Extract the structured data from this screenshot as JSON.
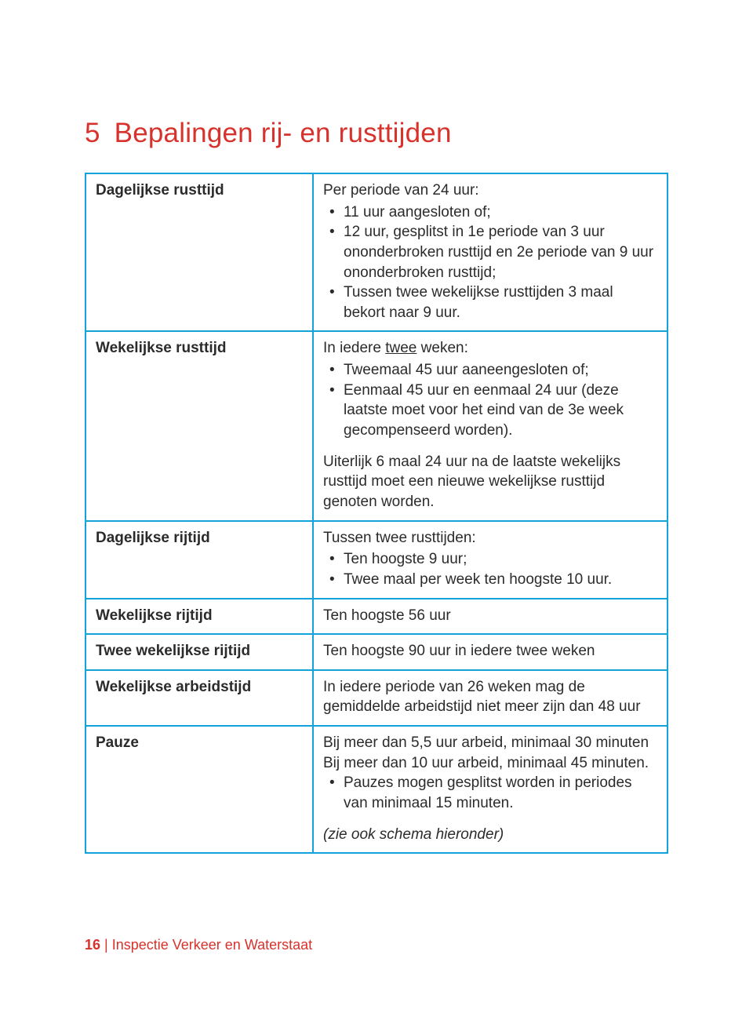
{
  "colors": {
    "accent": "#d7332c",
    "tableBorder": "#13a3db",
    "bodyText": "#2b2b2b",
    "black": "#000000"
  },
  "heading": {
    "number": "5",
    "title": "Bepalingen rij- en rusttijden"
  },
  "rows": {
    "r1": {
      "label": "Dagelijkse rusttijd",
      "intro": "Per periode van 24 uur:",
      "b1": "11 uur aangesloten of;",
      "b2": "12 uur, gesplitst in 1e periode van 3 uur ononderbroken rusttijd en 2e periode van 9 uur ononderbroken rusttijd;",
      "b3": "Tussen twee wekelijkse rusttijden 3 maal bekort naar 9 uur."
    },
    "r2": {
      "label": "Wekelijkse rusttijd",
      "intro_pre": "In iedere ",
      "intro_u": "twee",
      "intro_post": " weken:",
      "b1": "Tweemaal 45 uur aaneengesloten of;",
      "b2": "Eenmaal 45 uur en eenmaal 24 uur (deze laatste moet voor het eind van de 3e week gecompenseerd worden).",
      "para": "Uiterlijk 6 maal 24 uur na de laatste wekelijks rusttijd moet een nieuwe wekelijkse rusttijd genoten worden."
    },
    "r3": {
      "label": "Dagelijkse rijtijd",
      "intro": "Tussen twee rusttijden:",
      "b1": "Ten hoogste 9 uur;",
      "b2": "Twee maal per week ten hoogste 10 uur."
    },
    "r4": {
      "label": "Wekelijkse rijtijd",
      "text": "Ten hoogste 56 uur"
    },
    "r5": {
      "label": "Twee wekelijkse rijtijd",
      "text": "Ten hoogste 90 uur in iedere twee weken"
    },
    "r6": {
      "label": "Wekelijkse arbeidstijd",
      "text": "In iedere periode van 26 weken mag de gemiddelde arbeidstijd niet meer zijn dan 48 uur"
    },
    "r7": {
      "label": "Pauze",
      "p1": "Bij meer dan 5,5 uur arbeid, minimaal 30 minuten",
      "p2": "Bij meer dan 10  uur arbeid, minimaal 45 minuten.",
      "b1": "Pauzes mogen gesplitst worden in periodes van minimaal 15 minuten.",
      "note": "(zie ook schema hieronder)"
    }
  },
  "footer": {
    "page": "16",
    "sep": " | ",
    "org": "Inspectie Verkeer en Waterstaat"
  }
}
